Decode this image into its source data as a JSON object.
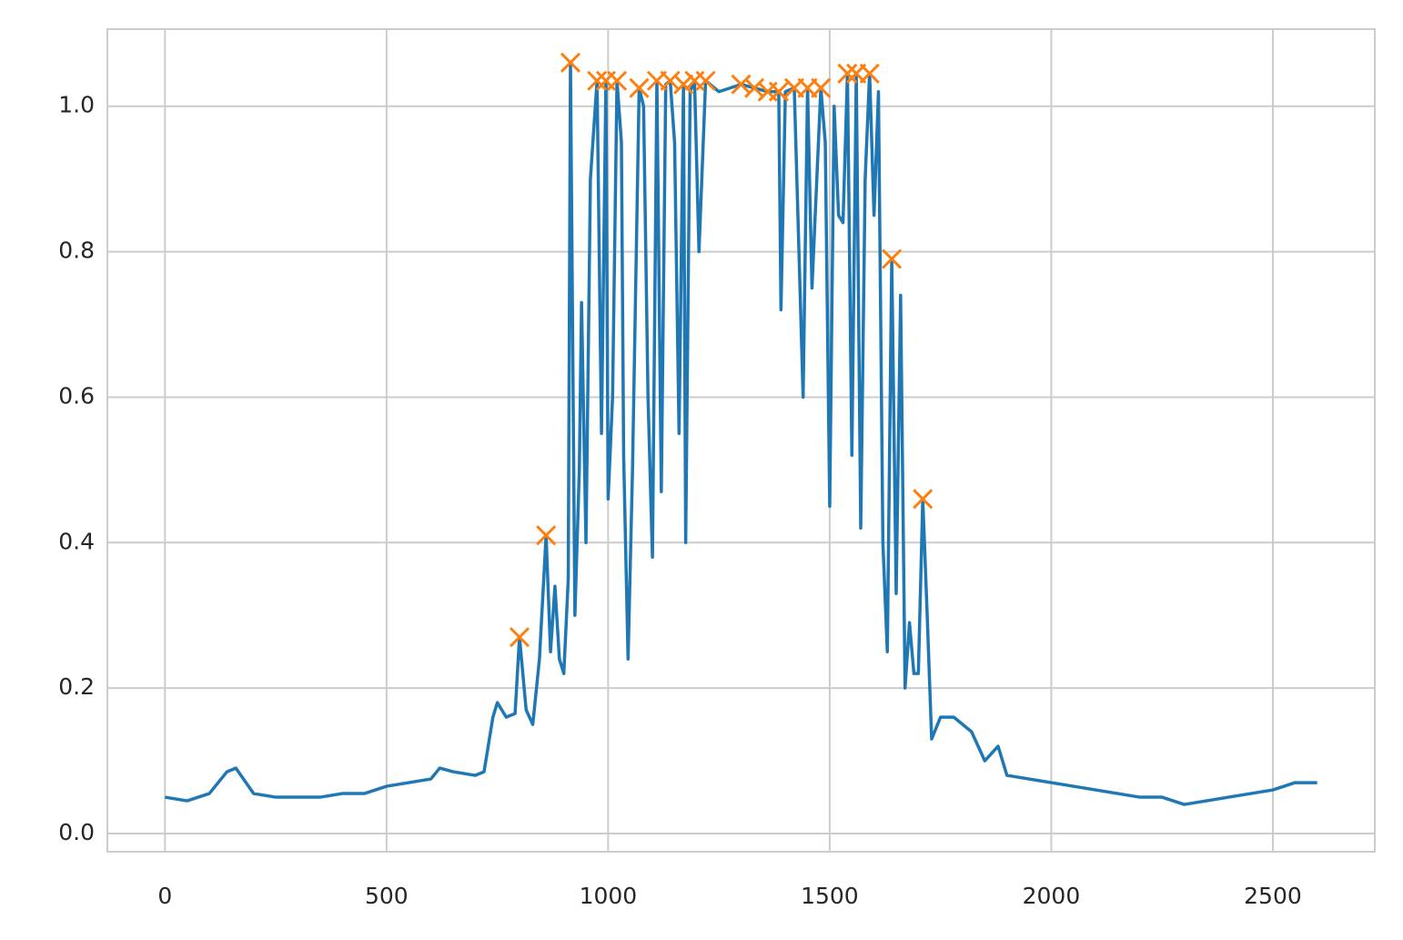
{
  "chart_data": {
    "type": "line",
    "xlim": [
      -130,
      2730
    ],
    "ylim": [
      -0.025,
      1.106
    ],
    "xticks": [
      0,
      500,
      1000,
      1500,
      2000,
      2500
    ],
    "yticks": [
      {
        "value": 0,
        "label": "0.0"
      },
      {
        "value": 0.2,
        "label": "0.2"
      },
      {
        "value": 0.4,
        "label": "0.4"
      },
      {
        "value": 0.6,
        "label": "0.6"
      },
      {
        "value": 0.8,
        "label": "0.8"
      },
      {
        "value": 1.0,
        "label": "1.0"
      }
    ],
    "grid": true,
    "series": [
      {
        "color": "#1f77b4",
        "x": [
          0,
          50,
          100,
          140,
          160,
          200,
          250,
          300,
          350,
          400,
          450,
          500,
          550,
          600,
          620,
          650,
          700,
          720,
          740,
          750,
          770,
          790,
          800,
          815,
          830,
          845,
          860,
          870,
          880,
          890,
          900,
          910,
          915,
          925,
          935,
          940,
          950,
          960,
          975,
          985,
          995,
          1000,
          1010,
          1020,
          1030,
          1035,
          1045,
          1055,
          1070,
          1080,
          1090,
          1100,
          1110,
          1120,
          1130,
          1140,
          1150,
          1160,
          1170,
          1175,
          1185,
          1195,
          1205,
          1220,
          1250,
          1300,
          1330,
          1360,
          1385,
          1390,
          1400,
          1420,
          1440,
          1450,
          1460,
          1480,
          1490,
          1500,
          1510,
          1520,
          1530,
          1540,
          1550,
          1560,
          1570,
          1580,
          1590,
          1600,
          1610,
          1620,
          1630,
          1640,
          1650,
          1660,
          1670,
          1680,
          1690,
          1700,
          1710,
          1720,
          1730,
          1750,
          1780,
          1800,
          1820,
          1850,
          1880,
          1900,
          1950,
          2000,
          2050,
          2100,
          2150,
          2200,
          2250,
          2300,
          2350,
          2400,
          2450,
          2500,
          2550,
          2600
        ],
        "values": [
          0.05,
          0.045,
          0.055,
          0.085,
          0.09,
          0.055,
          0.05,
          0.05,
          0.05,
          0.055,
          0.055,
          0.065,
          0.07,
          0.075,
          0.09,
          0.085,
          0.08,
          0.085,
          0.16,
          0.18,
          0.16,
          0.165,
          0.27,
          0.17,
          0.15,
          0.24,
          0.41,
          0.25,
          0.34,
          0.24,
          0.22,
          0.35,
          1.06,
          0.3,
          0.5,
          0.73,
          0.4,
          0.9,
          1.035,
          0.55,
          1.035,
          0.46,
          0.6,
          1.035,
          0.95,
          0.52,
          0.24,
          0.5,
          1.025,
          1.0,
          0.6,
          0.38,
          1.035,
          0.47,
          1.03,
          1.035,
          0.95,
          0.55,
          1.03,
          0.4,
          1.02,
          1.035,
          0.8,
          1.035,
          1.02,
          1.03,
          1.025,
          1.02,
          1.02,
          0.72,
          1.02,
          1.025,
          0.6,
          1.025,
          0.75,
          1.025,
          0.95,
          0.45,
          1.0,
          0.85,
          0.84,
          1.045,
          0.52,
          1.045,
          0.42,
          0.9,
          1.045,
          0.85,
          1.02,
          0.4,
          0.25,
          0.79,
          0.33,
          0.74,
          0.2,
          0.29,
          0.22,
          0.22,
          0.46,
          0.3,
          0.13,
          0.16,
          0.16,
          0.15,
          0.14,
          0.1,
          0.12,
          0.08,
          0.075,
          0.07,
          0.065,
          0.06,
          0.055,
          0.05,
          0.05,
          0.04,
          0.045,
          0.05,
          0.055,
          0.06,
          0.07,
          0.07
        ]
      },
      {
        "color": "#ff7f0e",
        "marker": "x",
        "x": [
          800,
          860,
          915,
          975,
          995,
          1020,
          1070,
          1110,
          1140,
          1170,
          1195,
          1220,
          1300,
          1330,
          1360,
          1385,
          1420,
          1450,
          1480,
          1540,
          1560,
          1590,
          1640,
          1710
        ],
        "values": [
          0.27,
          0.41,
          1.06,
          1.035,
          1.035,
          1.035,
          1.025,
          1.035,
          1.035,
          1.03,
          1.035,
          1.035,
          1.03,
          1.025,
          1.02,
          1.02,
          1.025,
          1.025,
          1.025,
          1.045,
          1.045,
          1.045,
          0.79,
          0.46
        ]
      }
    ]
  }
}
